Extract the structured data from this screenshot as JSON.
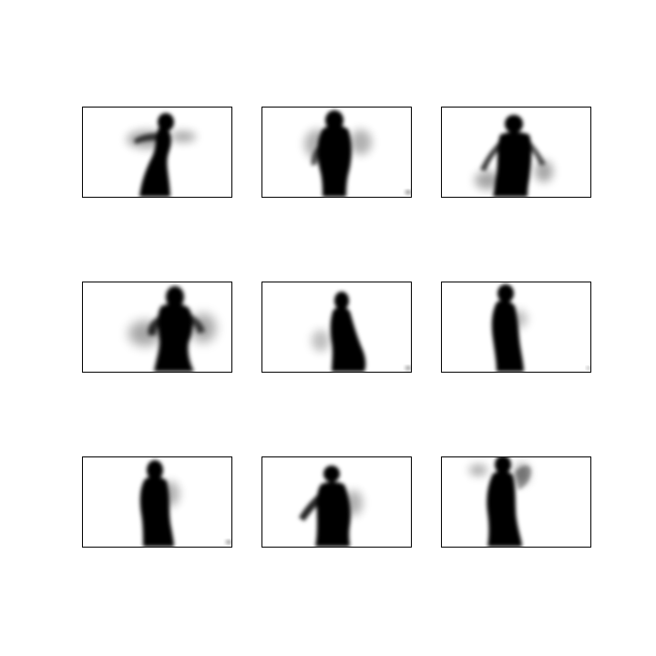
{
  "figure": {
    "panel_count": 9,
    "grid": {
      "rows": 3,
      "columns": 3
    },
    "background_color": "#ffffff",
    "silhouette_color": "#000000",
    "frame_color": "#000000",
    "panels": [
      {
        "row": 1,
        "column": 1,
        "content": "blurred-silhouette-figure"
      },
      {
        "row": 1,
        "column": 2,
        "content": "blurred-silhouette-figure"
      },
      {
        "row": 1,
        "column": 3,
        "content": "blurred-silhouette-figure"
      },
      {
        "row": 2,
        "column": 1,
        "content": "blurred-silhouette-figure"
      },
      {
        "row": 2,
        "column": 2,
        "content": "blurred-silhouette-figure"
      },
      {
        "row": 2,
        "column": 3,
        "content": "blurred-silhouette-figure"
      },
      {
        "row": 3,
        "column": 1,
        "content": "blurred-silhouette-figure"
      },
      {
        "row": 3,
        "column": 2,
        "content": "blurred-silhouette-figure"
      },
      {
        "row": 3,
        "column": 3,
        "content": "blurred-silhouette-figure"
      }
    ]
  }
}
